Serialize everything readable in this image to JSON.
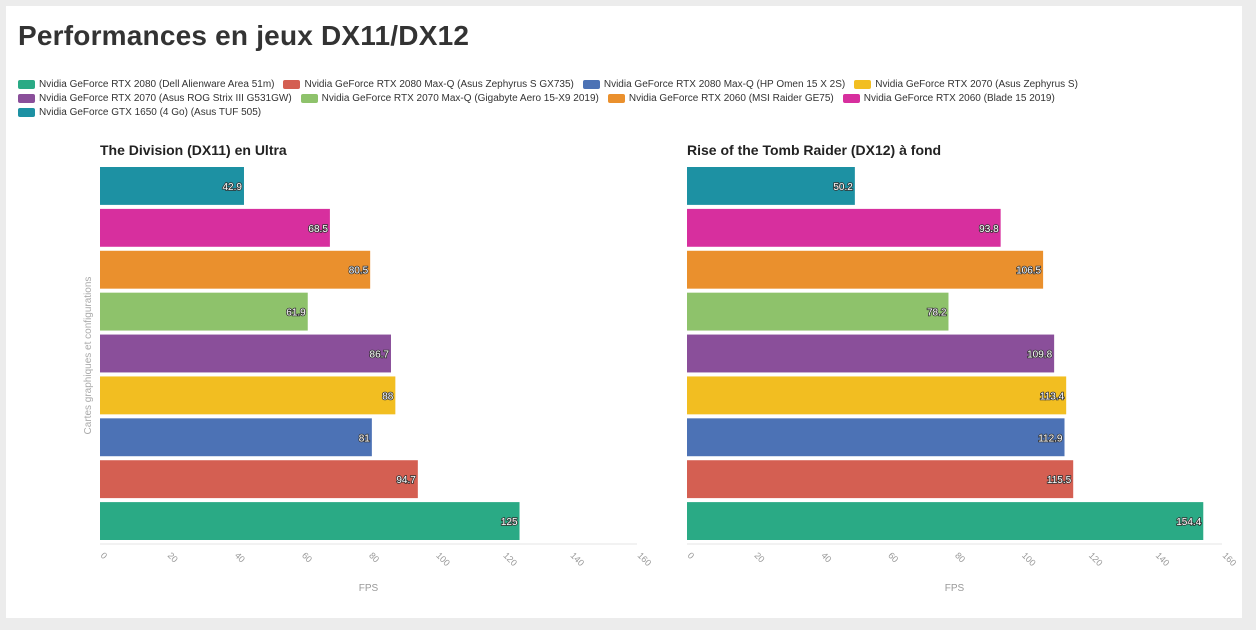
{
  "page": {
    "title": "Performances en jeux DX11/DX12"
  },
  "legend": {
    "items": [
      {
        "label": "Nvidia GeForce RTX 2080 (Dell Alienware Area 51m)",
        "color": "#2aaa85"
      },
      {
        "label": "Nvidia GeForce RTX 2080 Max-Q (Asus Zephyrus S GX735)",
        "color": "#d45f52"
      },
      {
        "label": "Nvidia GeForce RTX 2080 Max-Q (HP Omen 15 X 2S)",
        "color": "#4c72b5"
      },
      {
        "label": "Nvidia GeForce RTX 2070 (Asus Zephyrus S)",
        "color": "#f2be21"
      },
      {
        "label": "Nvidia GeForce RTX 2070 (Asus ROG Strix III G531GW)",
        "color": "#8a4f9a"
      },
      {
        "label": "Nvidia GeForce RTX 2070 Max-Q (Gigabyte Aero 15-X9 2019)",
        "color": "#8ec26b"
      },
      {
        "label": "Nvidia GeForce RTX 2060 (MSI Raider GE75)",
        "color": "#ea902d"
      },
      {
        "label": "Nvidia GeForce RTX 2060 (Blade 15 2019)",
        "color": "#d72f9e"
      },
      {
        "label": "Nvidia GeForce GTX 1650 (4 Go) (Asus TUF 505)",
        "color": "#1d91a3"
      }
    ]
  },
  "chart_data": [
    {
      "type": "bar",
      "orientation": "horizontal",
      "title": "The Division (DX11) en Ultra",
      "xlabel": "FPS",
      "ylabel": "Cartes graphiques et configurations",
      "xlim": [
        0,
        160
      ],
      "ticks": [
        0,
        20,
        40,
        60,
        80,
        100,
        120,
        140,
        160
      ],
      "categories": [
        "Nvidia GeForce GTX 1650 (4 Go) (Asus TUF 505)",
        "Nvidia GeForce RTX 2060 (Blade 15 2019)",
        "Nvidia GeForce RTX 2060 (MSI Raider GE75)",
        "Nvidia GeForce RTX 2070 Max-Q (Gigabyte Aero 15-X9 2019)",
        "Nvidia GeForce RTX 2070 (Asus ROG Strix III G531GW)",
        "Nvidia GeForce RTX 2070 (Asus Zephyrus S)",
        "Nvidia GeForce RTX 2080 Max-Q (HP Omen 15 X 2S)",
        "Nvidia GeForce RTX 2080 Max-Q (Asus Zephyrus S GX735)",
        "Nvidia GeForce RTX 2080 (Dell Alienware Area 51m)"
      ],
      "values": [
        42.9,
        68.5,
        80.5,
        61.9,
        86.7,
        88,
        81,
        94.7,
        125
      ],
      "colors": [
        "#1d91a3",
        "#d72f9e",
        "#ea902d",
        "#8ec26b",
        "#8a4f9a",
        "#f2be21",
        "#4c72b5",
        "#d45f52",
        "#2aaa85"
      ]
    },
    {
      "type": "bar",
      "orientation": "horizontal",
      "title": "Rise of the Tomb Raider (DX12) à fond",
      "xlabel": "FPS",
      "ylabel": "",
      "xlim": [
        0,
        160
      ],
      "ticks": [
        0,
        20,
        40,
        60,
        80,
        100,
        120,
        140,
        160
      ],
      "categories": [
        "Nvidia GeForce GTX 1650 (4 Go) (Asus TUF 505)",
        "Nvidia GeForce RTX 2060 (Blade 15 2019)",
        "Nvidia GeForce RTX 2060 (MSI Raider GE75)",
        "Nvidia GeForce RTX 2070 Max-Q (Gigabyte Aero 15-X9 2019)",
        "Nvidia GeForce RTX 2070 (Asus ROG Strix III G531GW)",
        "Nvidia GeForce RTX 2070 (Asus Zephyrus S)",
        "Nvidia GeForce RTX 2080 Max-Q (HP Omen 15 X 2S)",
        "Nvidia GeForce RTX 2080 Max-Q (Asus Zephyrus S GX735)",
        "Nvidia GeForce RTX 2080 (Dell Alienware Area 51m)"
      ],
      "values": [
        50.2,
        93.8,
        106.5,
        78.2,
        109.8,
        113.4,
        112.9,
        115.5,
        154.4
      ],
      "colors": [
        "#1d91a3",
        "#d72f9e",
        "#ea902d",
        "#8ec26b",
        "#8a4f9a",
        "#f2be21",
        "#4c72b5",
        "#d45f52",
        "#2aaa85"
      ]
    }
  ]
}
